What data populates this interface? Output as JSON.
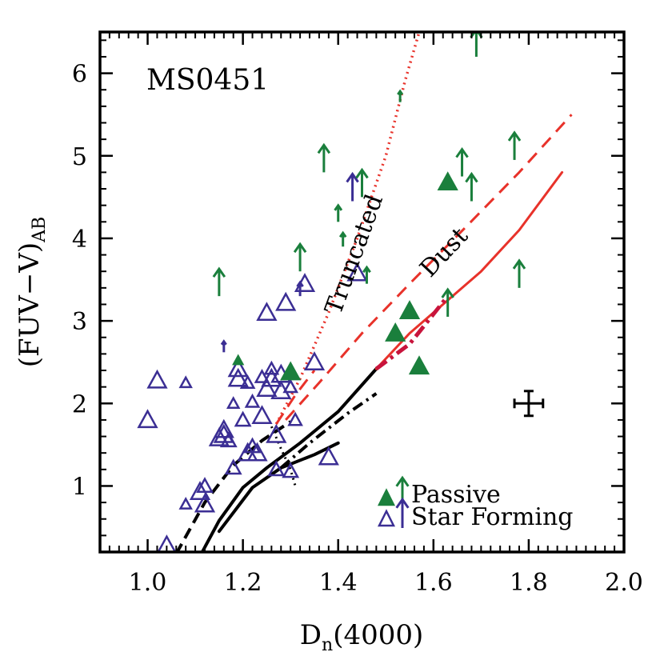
{
  "chart_data": {
    "type": "scatter",
    "title": "",
    "xlabel": "D",
    "xlabel_sub": "n",
    "xlabel_tail": "(4000)",
    "ylabel": "(FUV−V)",
    "ylabel_sub": "AB",
    "xlim": [
      0.9,
      2.0
    ],
    "ylim": [
      0.2,
      6.5
    ],
    "xticks": [
      1.0,
      1.2,
      1.4,
      1.6,
      1.8,
      2.0
    ],
    "xtick_labels": [
      "1.0",
      "1.2",
      "1.4",
      "1.6",
      "1.8",
      "2.0"
    ],
    "yticks": [
      1,
      2,
      3,
      4,
      5,
      6
    ],
    "ytick_labels": [
      "1",
      "2",
      "3",
      "4",
      "5",
      "6"
    ],
    "grid": false,
    "legend_placement": "bottom-right",
    "annotations": {
      "cluster": "MS0451",
      "truncated": "Truncated",
      "dust": "Dust"
    },
    "legend": [
      {
        "label": "Passive",
        "marker": "filled-triangle-and-arrow",
        "color": "#1a7f3c"
      },
      {
        "label": "Star Forming",
        "marker": "open-triangle-and-arrow",
        "color": "#3b2e94"
      }
    ],
    "colors": {
      "passive": "#1a7f3c",
      "star_forming": "#3b2e94",
      "model_red": "#e8322a",
      "model_crimson": "#c8143c",
      "model_black": "#000000"
    },
    "error_bar": {
      "x": 1.8,
      "y": 2.0,
      "dx": 0.03,
      "dy": 0.15
    },
    "series": [
      {
        "name": "Star Forming",
        "kind": "open-triangle",
        "points": [
          [
            1.0,
            1.8,
            1.0
          ],
          [
            1.02,
            2.28,
            1.0
          ],
          [
            1.04,
            0.28,
            1.0
          ],
          [
            1.08,
            0.78,
            0.6
          ],
          [
            1.08,
            2.25,
            0.6
          ],
          [
            1.11,
            0.93,
            1.0
          ],
          [
            1.12,
            0.78,
            1.0
          ],
          [
            1.12,
            1.0,
            0.8
          ],
          [
            1.15,
            1.58,
            1.0
          ],
          [
            1.16,
            1.62,
            1.0
          ],
          [
            1.16,
            1.68,
            1.0
          ],
          [
            1.17,
            1.55,
            0.8
          ],
          [
            1.18,
            1.22,
            0.8
          ],
          [
            1.18,
            2.0,
            0.6
          ],
          [
            1.19,
            2.3,
            1.0
          ],
          [
            1.19,
            2.42,
            1.0
          ],
          [
            1.2,
            1.8,
            0.8
          ],
          [
            1.21,
            1.4,
            1.0
          ],
          [
            1.21,
            2.25,
            0.7
          ],
          [
            1.22,
            1.48,
            0.8
          ],
          [
            1.22,
            2.02,
            0.7
          ],
          [
            1.23,
            1.4,
            1.0
          ],
          [
            1.24,
            1.85,
            1.0
          ],
          [
            1.24,
            2.32,
            0.7
          ],
          [
            1.25,
            2.18,
            1.0
          ],
          [
            1.25,
            3.1,
            1.0
          ],
          [
            1.26,
            2.3,
            1.0
          ],
          [
            1.26,
            2.42,
            0.7
          ],
          [
            1.27,
            1.62,
            1.0
          ],
          [
            1.27,
            1.2,
            0.8
          ],
          [
            1.28,
            2.35,
            1.0
          ],
          [
            1.28,
            2.15,
            1.0
          ],
          [
            1.29,
            3.22,
            1.0
          ],
          [
            1.3,
            2.2,
            0.7
          ],
          [
            1.3,
            1.18,
            0.8
          ],
          [
            1.31,
            1.8,
            0.7
          ],
          [
            1.33,
            3.45,
            1.0
          ],
          [
            1.35,
            2.5,
            1.0
          ],
          [
            1.38,
            1.35,
            1.0
          ],
          [
            1.44,
            3.58,
            1.0
          ]
        ]
      },
      {
        "name": "Star Forming",
        "kind": "arrow",
        "points": [
          [
            1.43,
            4.45,
            1.0
          ],
          [
            1.32,
            3.3,
            0.5
          ],
          [
            1.16,
            2.62,
            0.4
          ]
        ]
      },
      {
        "name": "Passive",
        "kind": "filled-triangle",
        "points": [
          [
            1.3,
            2.38,
            1.0
          ],
          [
            1.19,
            2.52,
            0.5
          ],
          [
            1.52,
            2.85,
            1.0
          ],
          [
            1.55,
            3.12,
            1.0
          ],
          [
            1.57,
            2.45,
            1.0
          ],
          [
            1.63,
            4.68,
            1.0
          ]
        ]
      },
      {
        "name": "Passive",
        "kind": "arrow",
        "points": [
          [
            1.15,
            3.3,
            1.0
          ],
          [
            1.32,
            3.6,
            1.0
          ],
          [
            1.37,
            4.8,
            1.0
          ],
          [
            1.4,
            4.2,
            0.6
          ],
          [
            1.41,
            3.9,
            0.5
          ],
          [
            1.45,
            4.5,
            1.0
          ],
          [
            1.46,
            3.45,
            0.6
          ],
          [
            1.53,
            5.65,
            0.4
          ],
          [
            1.63,
            3.05,
            1.0
          ],
          [
            1.66,
            4.75,
            1.0
          ],
          [
            1.68,
            4.45,
            1.0
          ],
          [
            1.69,
            6.2,
            1.0
          ],
          [
            1.77,
            4.95,
            1.0
          ],
          [
            1.78,
            3.4,
            1.0
          ]
        ]
      }
    ],
    "models": [
      {
        "style": "black-solid",
        "points": [
          [
            1.11,
            0.15
          ],
          [
            1.15,
            0.58
          ],
          [
            1.2,
            0.98
          ],
          [
            1.25,
            1.22
          ],
          [
            1.32,
            1.52
          ],
          [
            1.4,
            1.9
          ],
          [
            1.48,
            2.42
          ]
        ]
      },
      {
        "style": "black-solid",
        "points": [
          [
            1.15,
            0.45
          ],
          [
            1.22,
            0.98
          ],
          [
            1.28,
            1.22
          ],
          [
            1.35,
            1.38
          ],
          [
            1.4,
            1.52
          ]
        ]
      },
      {
        "style": "black-dashdot",
        "points": [
          [
            1.28,
            1.22
          ],
          [
            1.34,
            1.52
          ],
          [
            1.42,
            1.88
          ],
          [
            1.48,
            2.12
          ]
        ]
      },
      {
        "style": "black-dashed",
        "points": [
          [
            1.06,
            0.18
          ],
          [
            1.12,
            0.8
          ],
          [
            1.18,
            1.25
          ],
          [
            1.24,
            1.55
          ],
          [
            1.3,
            1.78
          ]
        ]
      },
      {
        "style": "black-dotted",
        "points": [
          [
            1.26,
            1.72
          ],
          [
            1.28,
            1.45
          ],
          [
            1.3,
            1.2
          ],
          [
            1.31,
            1.0
          ]
        ]
      },
      {
        "style": "red-solid",
        "points": [
          [
            1.48,
            2.42
          ],
          [
            1.55,
            2.85
          ],
          [
            1.62,
            3.2
          ],
          [
            1.7,
            3.6
          ],
          [
            1.78,
            4.1
          ],
          [
            1.87,
            4.8
          ]
        ]
      },
      {
        "style": "red-dashed",
        "points": [
          [
            1.29,
            1.8
          ],
          [
            1.36,
            2.25
          ],
          [
            1.45,
            2.85
          ],
          [
            1.55,
            3.45
          ],
          [
            1.67,
            4.15
          ],
          [
            1.78,
            4.8
          ],
          [
            1.89,
            5.5
          ]
        ]
      },
      {
        "style": "red-dashed",
        "points": [
          [
            1.27,
            1.75
          ],
          [
            1.31,
            2.1
          ],
          [
            1.35,
            2.4
          ]
        ]
      },
      {
        "style": "red-dotted",
        "points": [
          [
            1.27,
            1.75
          ],
          [
            1.32,
            2.3
          ],
          [
            1.38,
            3.1
          ],
          [
            1.44,
            4.0
          ],
          [
            1.5,
            5.0
          ],
          [
            1.54,
            5.9
          ],
          [
            1.57,
            6.5
          ]
        ]
      },
      {
        "style": "crimson-dashdot",
        "points": [
          [
            1.48,
            2.42
          ],
          [
            1.55,
            2.72
          ],
          [
            1.63,
            3.3
          ]
        ]
      }
    ]
  }
}
